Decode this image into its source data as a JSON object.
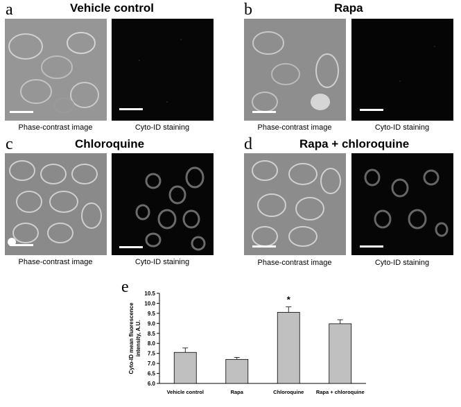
{
  "panels": [
    {
      "letter": "a",
      "title": "Vehicle control",
      "left_caption": "Phase-contrast image",
      "right_caption": "Cyto-ID staining"
    },
    {
      "letter": "b",
      "title": "Rapa",
      "left_caption": "Phase-contrast image",
      "right_caption": "Cyto-ID staining"
    },
    {
      "letter": "c",
      "title": "Chloroquine",
      "left_caption": "Phase-contrast image",
      "right_caption": "Cyto-ID staining"
    },
    {
      "letter": "d",
      "title": "Rapa + chloroquine",
      "left_caption": "Phase-contrast image",
      "right_caption": "Cyto-ID staining"
    }
  ],
  "chart_letter": "e",
  "chart_data": {
    "type": "bar",
    "categories": [
      "Vehicle control",
      "Rapa",
      "Chloroquine",
      "Rapa + chloroquine"
    ],
    "values": [
      7.55,
      7.2,
      9.55,
      8.98
    ],
    "errors": [
      0.22,
      0.1,
      0.27,
      0.2
    ],
    "significance": [
      "",
      "",
      "*",
      ""
    ],
    "ylabel": "Cyto-ID mean fluorescence intensity, A.U.",
    "xlabel": "",
    "title": "",
    "ylim": [
      6.0,
      10.5
    ],
    "yticks": [
      "6.0",
      "6.5",
      "7.0",
      "7.5",
      "8.0",
      "8.5",
      "9.0",
      "9.5",
      "10.0",
      "10.5"
    ],
    "bar_color": "#c0c0c0",
    "grid": false
  }
}
